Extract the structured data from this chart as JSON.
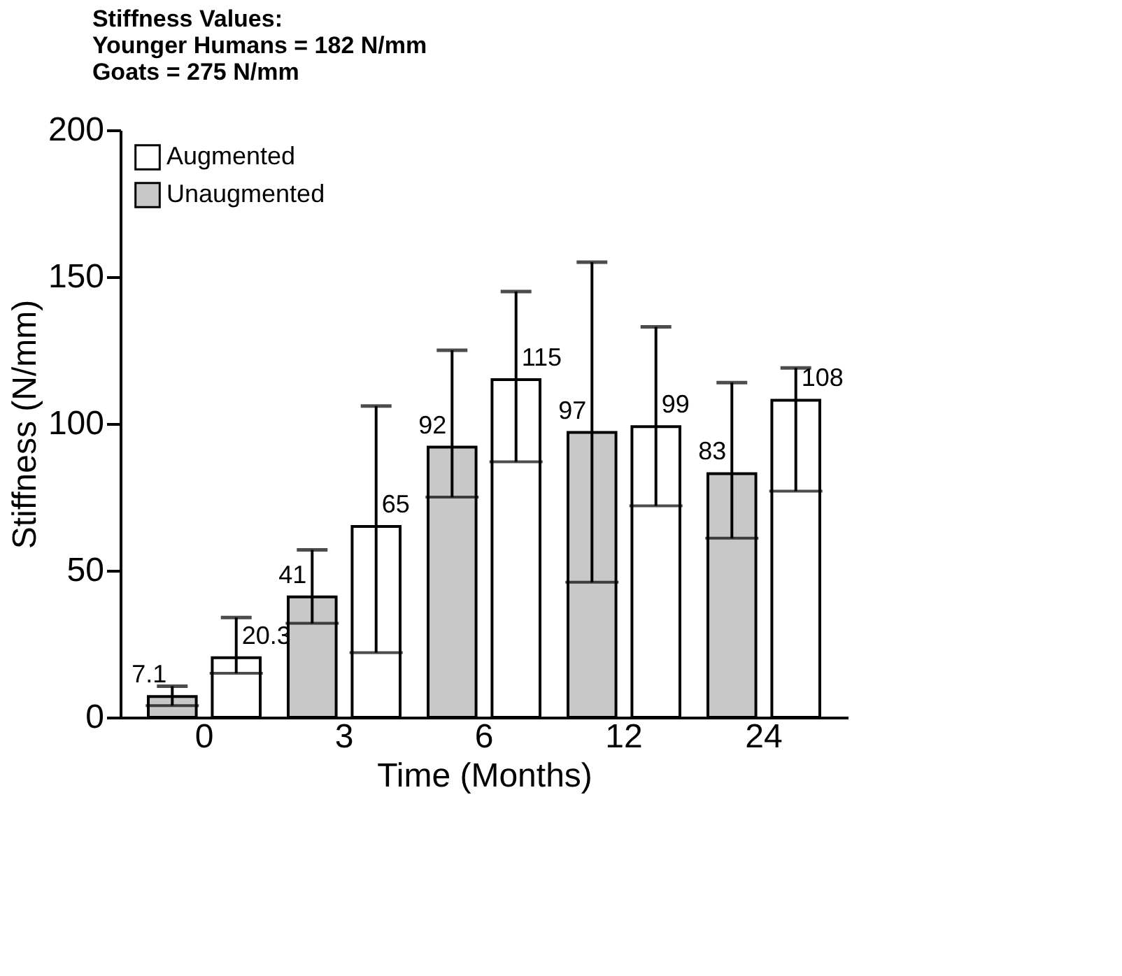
{
  "chart_data": {
    "type": "bar",
    "annotations": [
      "Stiffness Values:",
      "Younger Humans = 182 N/mm",
      "Goats                 = 275 N/mm"
    ],
    "xlabel": "Time (Months)",
    "ylabel": "Stiffness (N/mm)",
    "categories": [
      "0",
      "3",
      "6",
      "12",
      "24"
    ],
    "series": [
      {
        "name": "Unaugmented",
        "color": "#c8c8c8",
        "values": [
          7.1,
          41,
          92,
          97,
          83
        ],
        "errors": [
          [
            4,
            10.6
          ],
          [
            32,
            57
          ],
          [
            75,
            125
          ],
          [
            46,
            155
          ],
          [
            61,
            114
          ]
        ]
      },
      {
        "name": "Augmented",
        "color": "#ffffff",
        "values": [
          20.3,
          65,
          115,
          99,
          108
        ],
        "errors": [
          [
            15,
            34
          ],
          [
            22,
            106
          ],
          [
            87,
            145
          ],
          [
            72,
            133
          ],
          [
            77,
            119
          ]
        ]
      }
    ],
    "ylim": [
      0,
      200
    ],
    "yticks": [
      0,
      50,
      100,
      150,
      200
    ],
    "grid": false,
    "legend": "top left",
    "data_labels": true
  }
}
